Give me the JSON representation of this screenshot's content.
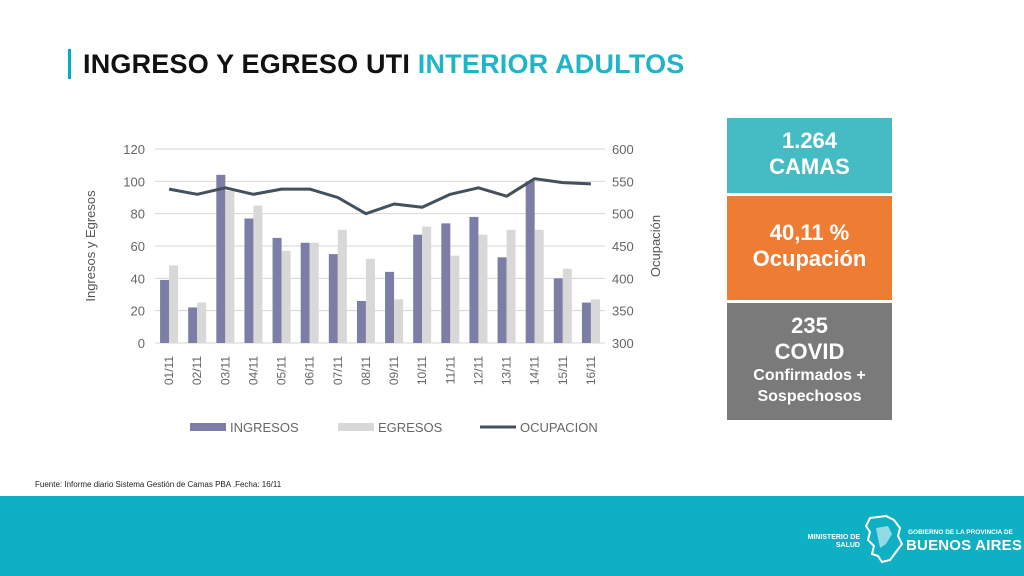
{
  "slide": {
    "title_main": "INGRESO Y EGRESO UTI ",
    "title_accent": "INTERIOR ADULTOS",
    "accent_color": "#1fb5c8"
  },
  "kpis": {
    "beds_value": "1.264",
    "beds_label": "CAMAS",
    "occupancy_value": "40,11 %",
    "occupancy_label": "Ocupación",
    "covid_value": "235",
    "covid_label": "COVID",
    "covid_sub1": "Confirmados +",
    "covid_sub2": "Sospechosos",
    "colors": {
      "beds": "#45bcc4",
      "occupancy": "#ee7d33",
      "covid": "#7a7a7a"
    }
  },
  "source": "Fuente: Informe diario Sistema Gestión de Camas PBA .Fecha: 16/11",
  "footer": {
    "ministry": "MINISTERIO DE SALUD",
    "gov_small": "GOBIERNO DE LA PROVINCIA DE",
    "gov_big": "BUENOS AIRES",
    "color": "#0fb0c4"
  },
  "chart_data": {
    "type": "bar",
    "categories": [
      "01/11",
      "02/11",
      "03/11",
      "04/11",
      "05/11",
      "06/11",
      "07/11",
      "08/11",
      "09/11",
      "10/11",
      "11/11",
      "12/11",
      "13/11",
      "14/11",
      "15/11",
      "16/11"
    ],
    "series": [
      {
        "name": "INGRESOS",
        "type": "bar",
        "axis": "left",
        "color": "#7c7ea6",
        "values": [
          39,
          22,
          104,
          77,
          65,
          62,
          55,
          26,
          44,
          67,
          74,
          78,
          53,
          100,
          40,
          25
        ]
      },
      {
        "name": "EGRESOS",
        "type": "bar",
        "axis": "left",
        "color": "#d8d8d8",
        "values": [
          48,
          25,
          94,
          85,
          57,
          62,
          70,
          52,
          27,
          72,
          54,
          67,
          70,
          70,
          46,
          27
        ]
      },
      {
        "name": "OCUPACION",
        "type": "line",
        "axis": "right",
        "color": "#44505c",
        "values": [
          538,
          530,
          540,
          530,
          538,
          538,
          525,
          500,
          515,
          510,
          530,
          540,
          527,
          554,
          548,
          546
        ]
      }
    ],
    "ylabel": "Ingresos y Egresos",
    "y2label": "Ocupación",
    "ylim": [
      0,
      120
    ],
    "y_ticks": [
      0,
      20,
      40,
      60,
      80,
      100,
      120
    ],
    "y2lim": [
      300,
      600
    ],
    "y2_ticks": [
      300,
      350,
      400,
      450,
      500,
      550,
      600
    ],
    "grid": true,
    "legend": "bottom"
  }
}
